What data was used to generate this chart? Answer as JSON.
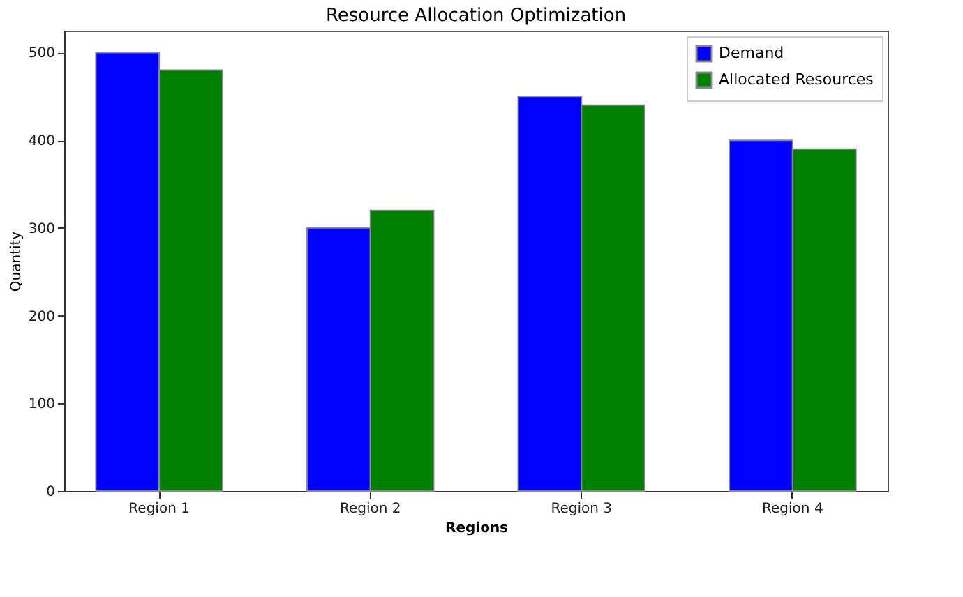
{
  "chart_data": {
    "type": "bar",
    "title": "Resource Allocation Optimization",
    "xlabel": "Regions",
    "ylabel": "Quantity",
    "categories": [
      "Region 1",
      "Region 2",
      "Region 3",
      "Region 4"
    ],
    "series": [
      {
        "name": "Demand",
        "color": "#0000ff",
        "values": [
          500,
          300,
          450,
          400
        ]
      },
      {
        "name": "Allocated Resources",
        "color": "#008000",
        "values": [
          480,
          320,
          440,
          390
        ]
      }
    ],
    "ylim": [
      0,
      525
    ],
    "yticks": [
      0,
      100,
      200,
      300,
      400,
      500
    ],
    "grid": false,
    "legend": "top right"
  }
}
